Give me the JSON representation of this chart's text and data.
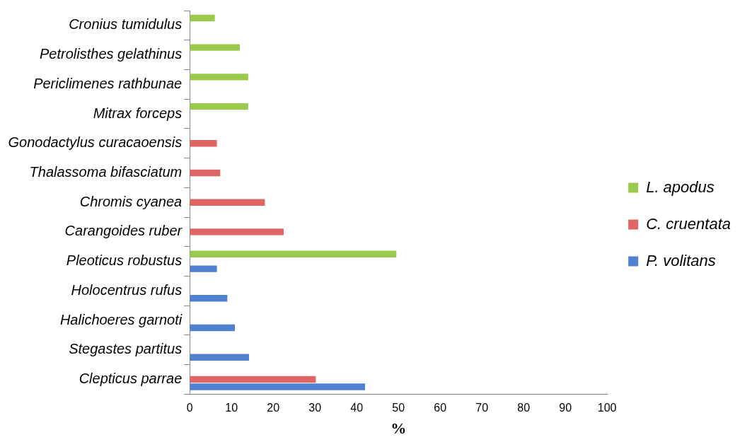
{
  "chart_data": {
    "type": "bar",
    "orientation": "horizontal",
    "xlabel": "%",
    "categories": [
      "Cronius tumidulus",
      "Petrolisthes gelathinus",
      "Periclimenes rathbunae",
      "Mitrax forceps",
      "Gonodactylus curacaoensis",
      "Thalassoma bifasciatum",
      "Chromis cyanea",
      "Carangoides ruber",
      "Pleoticus robustus",
      "Holocentrus rufus",
      "Halichoeres garnoti",
      "Stegastes partitus",
      "Clepticus parrae"
    ],
    "series": [
      {
        "name": "L. apodus",
        "color": "#9bc94b",
        "values": [
          6,
          12,
          14,
          14,
          null,
          null,
          null,
          null,
          49.5,
          null,
          null,
          null,
          null
        ]
      },
      {
        "name": "C. cruentata",
        "color": "#e06666",
        "values": [
          null,
          null,
          null,
          null,
          6.5,
          7.3,
          18,
          22.5,
          null,
          null,
          null,
          null,
          30.2
        ]
      },
      {
        "name": "P. volitans",
        "color": "#4f81d0",
        "values": [
          null,
          null,
          null,
          null,
          null,
          null,
          null,
          null,
          6.5,
          9,
          10.8,
          14.2,
          42
        ]
      }
    ],
    "xlim": [
      0,
      100
    ],
    "xticks": [
      0,
      10,
      20,
      30,
      40,
      50,
      60,
      70,
      80,
      90,
      100
    ],
    "grid": false,
    "legend": "right"
  }
}
